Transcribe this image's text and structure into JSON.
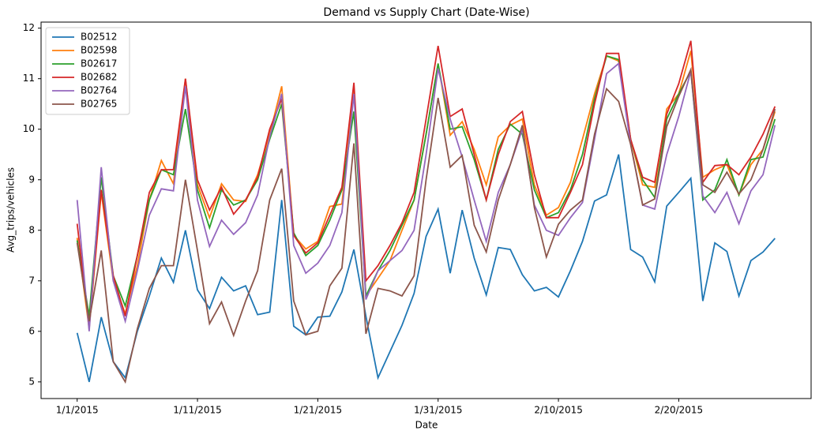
{
  "chart_data": {
    "type": "line",
    "title": "Demand vs Supply Chart (Date-Wise)",
    "x_label": "Date",
    "y_label": "Avg_trips/vehicles",
    "x": [
      "1/1/2015",
      "1/2/2015",
      "1/3/2015",
      "1/4/2015",
      "1/5/2015",
      "1/6/2015",
      "1/7/2015",
      "1/8/2015",
      "1/9/2015",
      "1/10/2015",
      "1/11/2015",
      "1/12/2015",
      "1/13/2015",
      "1/14/2015",
      "1/15/2015",
      "1/16/2015",
      "1/17/2015",
      "1/18/2015",
      "1/19/2015",
      "1/20/2015",
      "1/21/2015",
      "1/22/2015",
      "1/23/2015",
      "1/24/2015",
      "1/25/2015",
      "1/26/2015",
      "1/27/2015",
      "1/28/2015",
      "1/29/2015",
      "1/30/2015",
      "1/31/2015",
      "2/1/2015",
      "2/2/2015",
      "2/3/2015",
      "2/4/2015",
      "2/5/2015",
      "2/6/2015",
      "2/7/2015",
      "2/8/2015",
      "2/9/2015",
      "2/10/2015",
      "2/11/2015",
      "2/12/2015",
      "2/13/2015",
      "2/14/2015",
      "2/15/2015",
      "2/16/2015",
      "2/17/2015",
      "2/18/2015",
      "2/19/2015",
      "2/20/2015",
      "2/21/2015",
      "2/22/2015",
      "2/23/2015",
      "2/24/2015",
      "2/25/2015",
      "2/26/2015",
      "2/27/2015",
      "2/28/2015"
    ],
    "series": [
      {
        "name": "B02512",
        "color": "#1f77b4",
        "values": [
          5.97,
          5.0,
          6.28,
          5.4,
          5.08,
          6.0,
          6.7,
          7.45,
          6.97,
          8.0,
          6.82,
          6.45,
          7.07,
          6.8,
          6.9,
          6.33,
          6.38,
          8.6,
          6.1,
          5.93,
          6.28,
          6.3,
          6.78,
          7.62,
          6.3,
          5.08,
          5.6,
          6.12,
          6.75,
          7.88,
          8.42,
          7.15,
          8.4,
          7.45,
          6.72,
          7.66,
          7.62,
          7.12,
          6.8,
          6.87,
          6.68,
          7.2,
          7.78,
          8.58,
          8.7,
          9.5,
          7.62,
          7.47,
          6.98,
          8.48,
          8.75,
          9.03,
          6.6,
          7.75,
          7.58,
          6.7,
          7.4,
          7.57,
          7.84
        ]
      },
      {
        "name": "B02598",
        "color": "#ff7f0e",
        "values": [
          7.85,
          6.05,
          8.75,
          7.0,
          6.35,
          7.3,
          8.6,
          9.38,
          8.92,
          11.0,
          8.9,
          8.25,
          8.92,
          8.6,
          8.57,
          9.1,
          9.9,
          10.85,
          7.9,
          7.63,
          7.78,
          8.47,
          8.52,
          10.8,
          6.7,
          7.05,
          7.4,
          8.0,
          8.6,
          9.9,
          11.3,
          9.88,
          10.15,
          9.6,
          8.9,
          9.85,
          10.08,
          10.2,
          8.9,
          8.3,
          8.45,
          8.95,
          9.8,
          10.7,
          11.45,
          11.35,
          9.8,
          8.9,
          8.85,
          10.4,
          10.7,
          11.55,
          9.05,
          9.2,
          9.3,
          8.7,
          9.3,
          9.6,
          10.35
        ]
      },
      {
        "name": "B02617",
        "color": "#2ca02c",
        "values": [
          7.8,
          6.3,
          9.05,
          7.1,
          6.5,
          7.5,
          8.6,
          9.2,
          9.1,
          10.4,
          8.8,
          8.05,
          8.8,
          8.5,
          8.6,
          9.0,
          9.8,
          10.5,
          7.95,
          7.5,
          7.7,
          8.2,
          8.8,
          10.35,
          6.7,
          7.2,
          7.6,
          8.1,
          8.6,
          9.9,
          11.3,
          10.0,
          10.05,
          9.4,
          8.6,
          9.6,
          10.1,
          9.9,
          8.8,
          8.25,
          8.35,
          8.8,
          9.5,
          10.6,
          11.45,
          11.38,
          9.8,
          9.0,
          8.65,
          10.2,
          10.7,
          11.15,
          8.6,
          8.8,
          9.4,
          8.7,
          9.4,
          9.45,
          10.2
        ]
      },
      {
        "name": "B02682",
        "color": "#d62728",
        "values": [
          8.13,
          6.1,
          8.8,
          7.1,
          6.3,
          7.5,
          8.75,
          9.2,
          9.2,
          11.0,
          9.0,
          8.4,
          8.85,
          8.32,
          8.6,
          9.05,
          10.0,
          10.6,
          7.9,
          7.55,
          7.75,
          8.3,
          8.85,
          10.92,
          7.0,
          7.3,
          7.7,
          8.15,
          8.75,
          10.2,
          11.65,
          10.25,
          10.4,
          9.5,
          8.6,
          9.5,
          10.15,
          10.35,
          9.1,
          8.25,
          8.25,
          8.75,
          9.3,
          10.5,
          11.5,
          11.5,
          9.8,
          9.05,
          8.95,
          10.3,
          10.9,
          11.75,
          8.95,
          9.28,
          9.3,
          9.1,
          9.45,
          9.9,
          10.45
        ]
      },
      {
        "name": "B02764",
        "color": "#9467bd",
        "values": [
          8.6,
          6.0,
          9.25,
          7.0,
          6.2,
          7.2,
          8.3,
          8.82,
          8.78,
          10.85,
          8.6,
          7.68,
          8.2,
          7.92,
          8.15,
          8.7,
          9.85,
          10.7,
          7.7,
          7.15,
          7.35,
          7.7,
          8.35,
          10.7,
          6.63,
          7.2,
          7.4,
          7.6,
          8.0,
          9.5,
          11.2,
          10.2,
          9.45,
          8.6,
          7.78,
          8.75,
          9.3,
          10.0,
          8.5,
          8.0,
          7.9,
          8.25,
          8.55,
          9.8,
          11.1,
          11.3,
          9.7,
          8.5,
          8.42,
          9.5,
          10.25,
          11.15,
          8.68,
          8.35,
          8.75,
          8.13,
          8.78,
          9.1,
          10.08
        ]
      },
      {
        "name": "B02765",
        "color": "#8c564b",
        "values": [
          7.75,
          6.2,
          7.6,
          5.4,
          5.0,
          6.05,
          6.85,
          7.3,
          7.3,
          9.0,
          7.6,
          6.15,
          6.58,
          5.92,
          6.6,
          7.2,
          8.6,
          9.22,
          6.6,
          5.93,
          6.0,
          6.9,
          7.25,
          9.72,
          5.95,
          6.85,
          6.8,
          6.7,
          7.1,
          9.0,
          10.62,
          9.25,
          9.48,
          8.1,
          7.57,
          8.6,
          9.3,
          10.08,
          8.45,
          7.47,
          8.12,
          8.4,
          8.6,
          9.9,
          10.8,
          10.55,
          9.7,
          8.5,
          8.62,
          10.05,
          10.65,
          11.18,
          8.9,
          8.75,
          9.15,
          8.72,
          9.0,
          9.6,
          10.4
        ]
      }
    ],
    "xlim": [
      "12/29/2014",
      "3/3/2015"
    ],
    "xticks": [
      "1/1/2015",
      "1/11/2015",
      "1/21/2015",
      "1/31/2015",
      "2/10/2015",
      "2/20/2015"
    ],
    "ylim": [
      4.67,
      12.12
    ],
    "yticks": [
      5,
      6,
      7,
      8,
      9,
      10,
      11,
      12
    ],
    "grid": false,
    "legend": "upper left"
  }
}
